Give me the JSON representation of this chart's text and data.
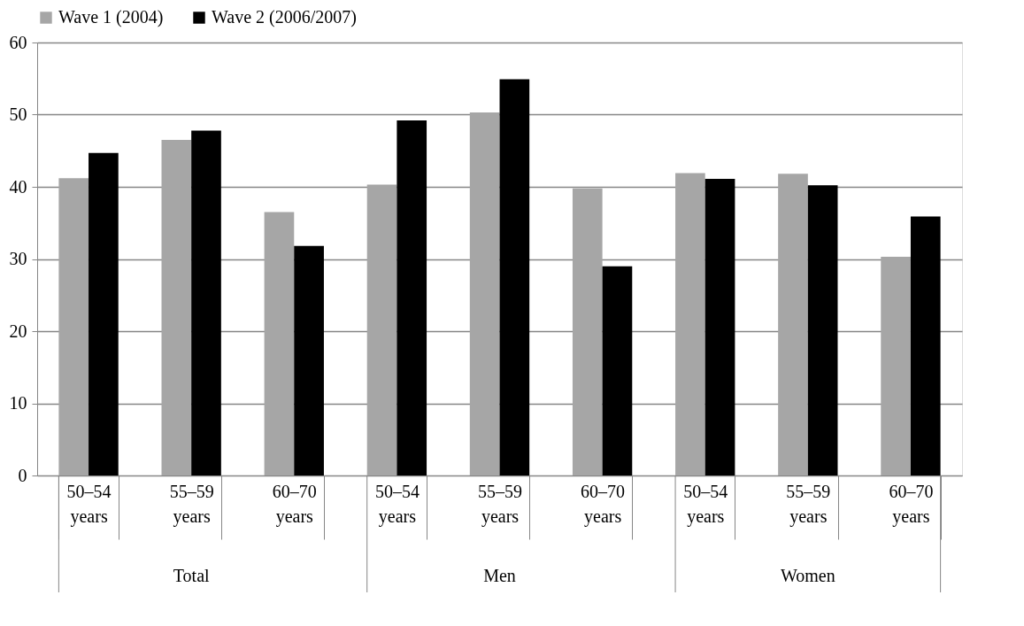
{
  "chart_data": {
    "type": "bar",
    "categories": [
      "50–54 years",
      "55–59 years",
      "60–70 years",
      "50–54 years",
      "55–59 years",
      "60–70 years",
      "50–54 years",
      "55–59 years",
      "60–70 years"
    ],
    "series": [
      {
        "name": "Wave 1 (2004)",
        "color": "#a6a6a6",
        "values": [
          41.2,
          46.5,
          36.5,
          40.3,
          50.3,
          39.8,
          41.9,
          41.8,
          30.3
        ]
      },
      {
        "name": "Wave 2 (2006/2007)",
        "color": "#000000",
        "values": [
          44.7,
          47.8,
          31.8,
          49.2,
          54.9,
          29.0,
          41.1,
          40.2,
          35.9
        ]
      }
    ],
    "annotations": [
      "Total",
      "Men",
      "Women"
    ],
    "ylim": [
      0,
      60
    ],
    "yticks": [
      0,
      10,
      20,
      30,
      40,
      50,
      60
    ],
    "grid": "y",
    "legend": "top"
  }
}
